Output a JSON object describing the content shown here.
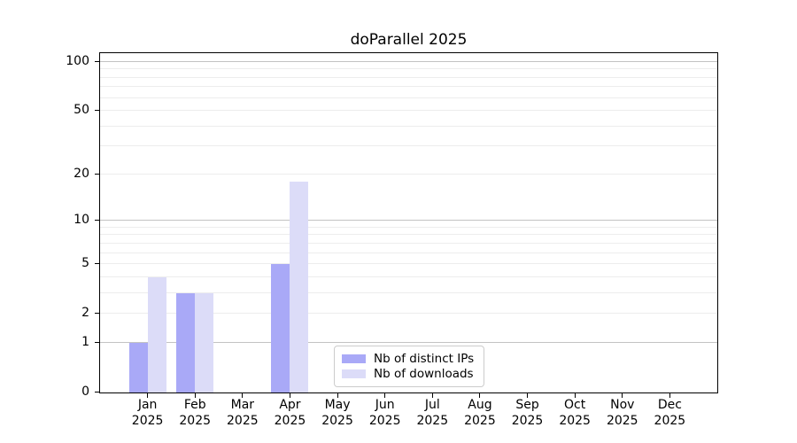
{
  "chart_data": {
    "type": "bar",
    "title": "doParallel 2025",
    "categories": [
      "Jan",
      "Feb",
      "Mar",
      "Apr",
      "May",
      "Jun",
      "Jul",
      "Aug",
      "Sep",
      "Oct",
      "Nov",
      "Dec"
    ],
    "year": "2025",
    "series": [
      {
        "name": "Nb of distinct IPs",
        "color": "#a9a9f7",
        "values": [
          1,
          3,
          0,
          5,
          0,
          0,
          0,
          0,
          0,
          0,
          0,
          0
        ]
      },
      {
        "name": "Nb of downloads",
        "color": "#dcdcf8",
        "values": [
          4,
          3,
          0,
          18,
          0,
          0,
          0,
          0,
          0,
          0,
          0,
          0
        ]
      }
    ],
    "yscale": "log1p",
    "ylim": [
      0,
      113.3
    ],
    "yticks": [
      0,
      1,
      2,
      5,
      10,
      20,
      50,
      100
    ],
    "grid_major": [
      1,
      10,
      100
    ],
    "grid_minor": [
      2,
      3,
      4,
      5,
      6,
      7,
      8,
      9,
      20,
      30,
      40,
      50,
      60,
      70,
      80,
      90
    ],
    "grid": "on",
    "legend_position": "lower-center-right",
    "colors": {
      "axis": "#000000",
      "grid_major": "#c3c3c3",
      "grid_minor": "#ededed",
      "legend_border": "#cccccc"
    }
  }
}
